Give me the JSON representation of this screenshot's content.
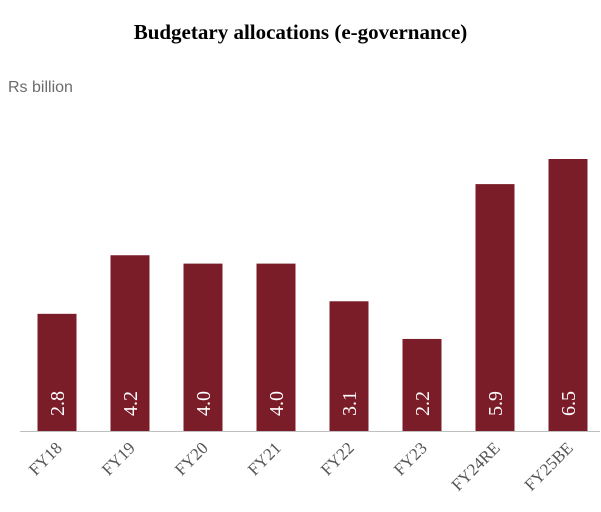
{
  "chart_data": {
    "type": "bar",
    "title": "Budgetary allocations (e-governance)",
    "ylabel": "Rs billion",
    "xlabel": "",
    "categories": [
      "FY18",
      "FY19",
      "FY20",
      "FY21",
      "FY22",
      "FY23",
      "FY24RE",
      "FY25BE"
    ],
    "values": [
      2.8,
      4.2,
      4.0,
      4.0,
      3.1,
      2.2,
      5.9,
      6.5
    ],
    "data_labels": [
      "2.8",
      "4.2",
      "4.0",
      "4.0",
      "3.1",
      "2.2",
      "5.9",
      "6.5"
    ],
    "ylim": [
      0,
      6.5
    ],
    "grid": false,
    "legend": "none",
    "bar_color": "#7b1c29",
    "label_color": "#ffffff",
    "axis_color": "#bfbfbf"
  }
}
